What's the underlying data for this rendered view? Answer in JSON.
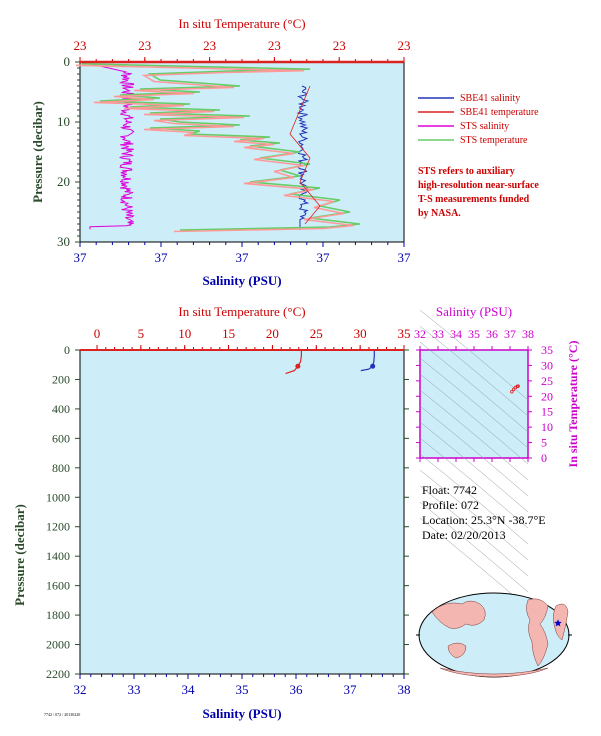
{
  "colors": {
    "plot_bg": "#cdeef8",
    "temperature_axis": "#cc0000",
    "salinity_axis": "#0000aa",
    "pressure_axis": "#2a4a2a",
    "sbe_salinity": "#2233bb",
    "sbe_temperature": "#dd2222",
    "sts_salinity": "#dd00dd",
    "sts_temperature": "#66cc66",
    "sts_temperature_alt": "#ff9999",
    "ts_axis": "#cc00cc"
  },
  "top_panel": {
    "temp_axis_title": "In situ Temperature (°C)",
    "temp_ticks": [
      "23",
      "23",
      "23",
      "23",
      "23",
      "23"
    ],
    "sal_axis_title": "Salinity (PSU)",
    "sal_ticks": [
      "37",
      "37",
      "37",
      "37",
      "37"
    ],
    "pressure_axis_title": "Pressure (decibar)",
    "pressure_ticks": [
      "0",
      "10",
      "20",
      "30"
    ]
  },
  "legend": {
    "items": [
      {
        "label": "SBE41 salinity",
        "color": "#2233bb"
      },
      {
        "label": "SBE41 temperature",
        "color": "#dd2222"
      },
      {
        "label": "STS salinity",
        "color": "#dd00dd"
      },
      {
        "label": "STS temperature",
        "color": "#66cc66"
      }
    ],
    "note_lines": [
      "STS refers to auxiliary",
      "high-resolution near-surface",
      "T-S measurements funded",
      "by NASA."
    ]
  },
  "bottom_panel": {
    "temp_axis_title": "In situ Temperature (°C)",
    "temp_ticks": [
      "0",
      "5",
      "10",
      "15",
      "20",
      "25",
      "30",
      "35"
    ],
    "sal_axis_title": "Salinity (PSU)",
    "sal_ticks": [
      "32",
      "33",
      "34",
      "35",
      "36",
      "37",
      "38"
    ],
    "pressure_axis_title": "Pressure (decibar)",
    "pressure_ticks": [
      "0",
      "200",
      "400",
      "600",
      "800",
      "1000",
      "1200",
      "1400",
      "1600",
      "1800",
      "2000",
      "2200"
    ]
  },
  "ts_panel": {
    "sal_axis_title": "Salinity (PSU)",
    "sal_ticks": [
      "32",
      "33",
      "34",
      "35",
      "36",
      "37",
      "38"
    ],
    "temp_axis_title": "In situ Temperature (°C)",
    "temp_ticks": [
      "0",
      "5",
      "10",
      "15",
      "20",
      "25",
      "30",
      "35"
    ]
  },
  "float_info": {
    "float": "Float:  7742",
    "profile": "Profile:  072",
    "location": "Location:  25.3°N  -38.7°E",
    "date": "Date:  02/20/2013"
  },
  "map": {
    "marker_lat": 25.3,
    "marker_lon": -38.7,
    "marker_color": "#0000cc"
  },
  "footer_tiny": "7742 / 072 / 20130220",
  "chart_data": [
    {
      "type": "line",
      "title": "",
      "xlabel": "In situ Temperature (°C) / Salinity (PSU)",
      "ylabel": "Pressure (decibar)",
      "ylim": [
        30,
        0
      ],
      "series": [
        {
          "name": "SBE41 salinity",
          "x": [
            37.3,
            37.31,
            37.29,
            37.3,
            37.3,
            37.28
          ],
          "y": [
            4,
            8,
            12,
            16,
            20,
            27
          ]
        },
        {
          "name": "SBE41 temperature",
          "x": [
            23.0,
            23.0,
            23.1,
            23.3,
            23.6,
            23.8
          ],
          "y": [
            0,
            5,
            10,
            15,
            20,
            27
          ]
        },
        {
          "name": "STS salinity",
          "x": [
            36.95,
            36.94,
            36.95,
            36.96,
            36.95,
            36.93
          ],
          "y": [
            0,
            5,
            10,
            15,
            20,
            28
          ]
        },
        {
          "name": "STS temperature",
          "x": [
            23.0,
            23.1,
            23.2,
            23.4,
            23.6,
            23.9
          ],
          "y": [
            0,
            5,
            10,
            15,
            20,
            28
          ]
        }
      ]
    },
    {
      "type": "line",
      "title": "",
      "xlabel": "Salinity (PSU)",
      "ylabel": "Pressure (decibar)",
      "xlim": [
        32,
        38
      ],
      "ylim": [
        2200,
        0
      ],
      "series": [
        {
          "name": "SBE41 salinity",
          "x": [
            37.45,
            37.45,
            37.44,
            37.42,
            37.35,
            37.2
          ],
          "y": [
            0,
            40,
            80,
            110,
            130,
            140
          ]
        },
        {
          "name": "SBE41 temperature",
          "x": [
            23.3,
            23.3,
            23.2,
            22.9,
            22.5,
            21.5
          ],
          "y": [
            0,
            40,
            80,
            110,
            140,
            160
          ]
        }
      ]
    },
    {
      "type": "scatter",
      "title": "",
      "xlabel": "Salinity (PSU)",
      "ylabel": "In situ Temperature (°C)",
      "xlim": [
        32,
        38
      ],
      "ylim": [
        0,
        35
      ],
      "series": [
        {
          "name": "",
          "x": [
            37.1,
            37.2,
            37.3,
            37.4,
            37.45
          ],
          "y": [
            21.5,
            22.2,
            22.8,
            23.2,
            23.3
          ]
        }
      ]
    }
  ]
}
